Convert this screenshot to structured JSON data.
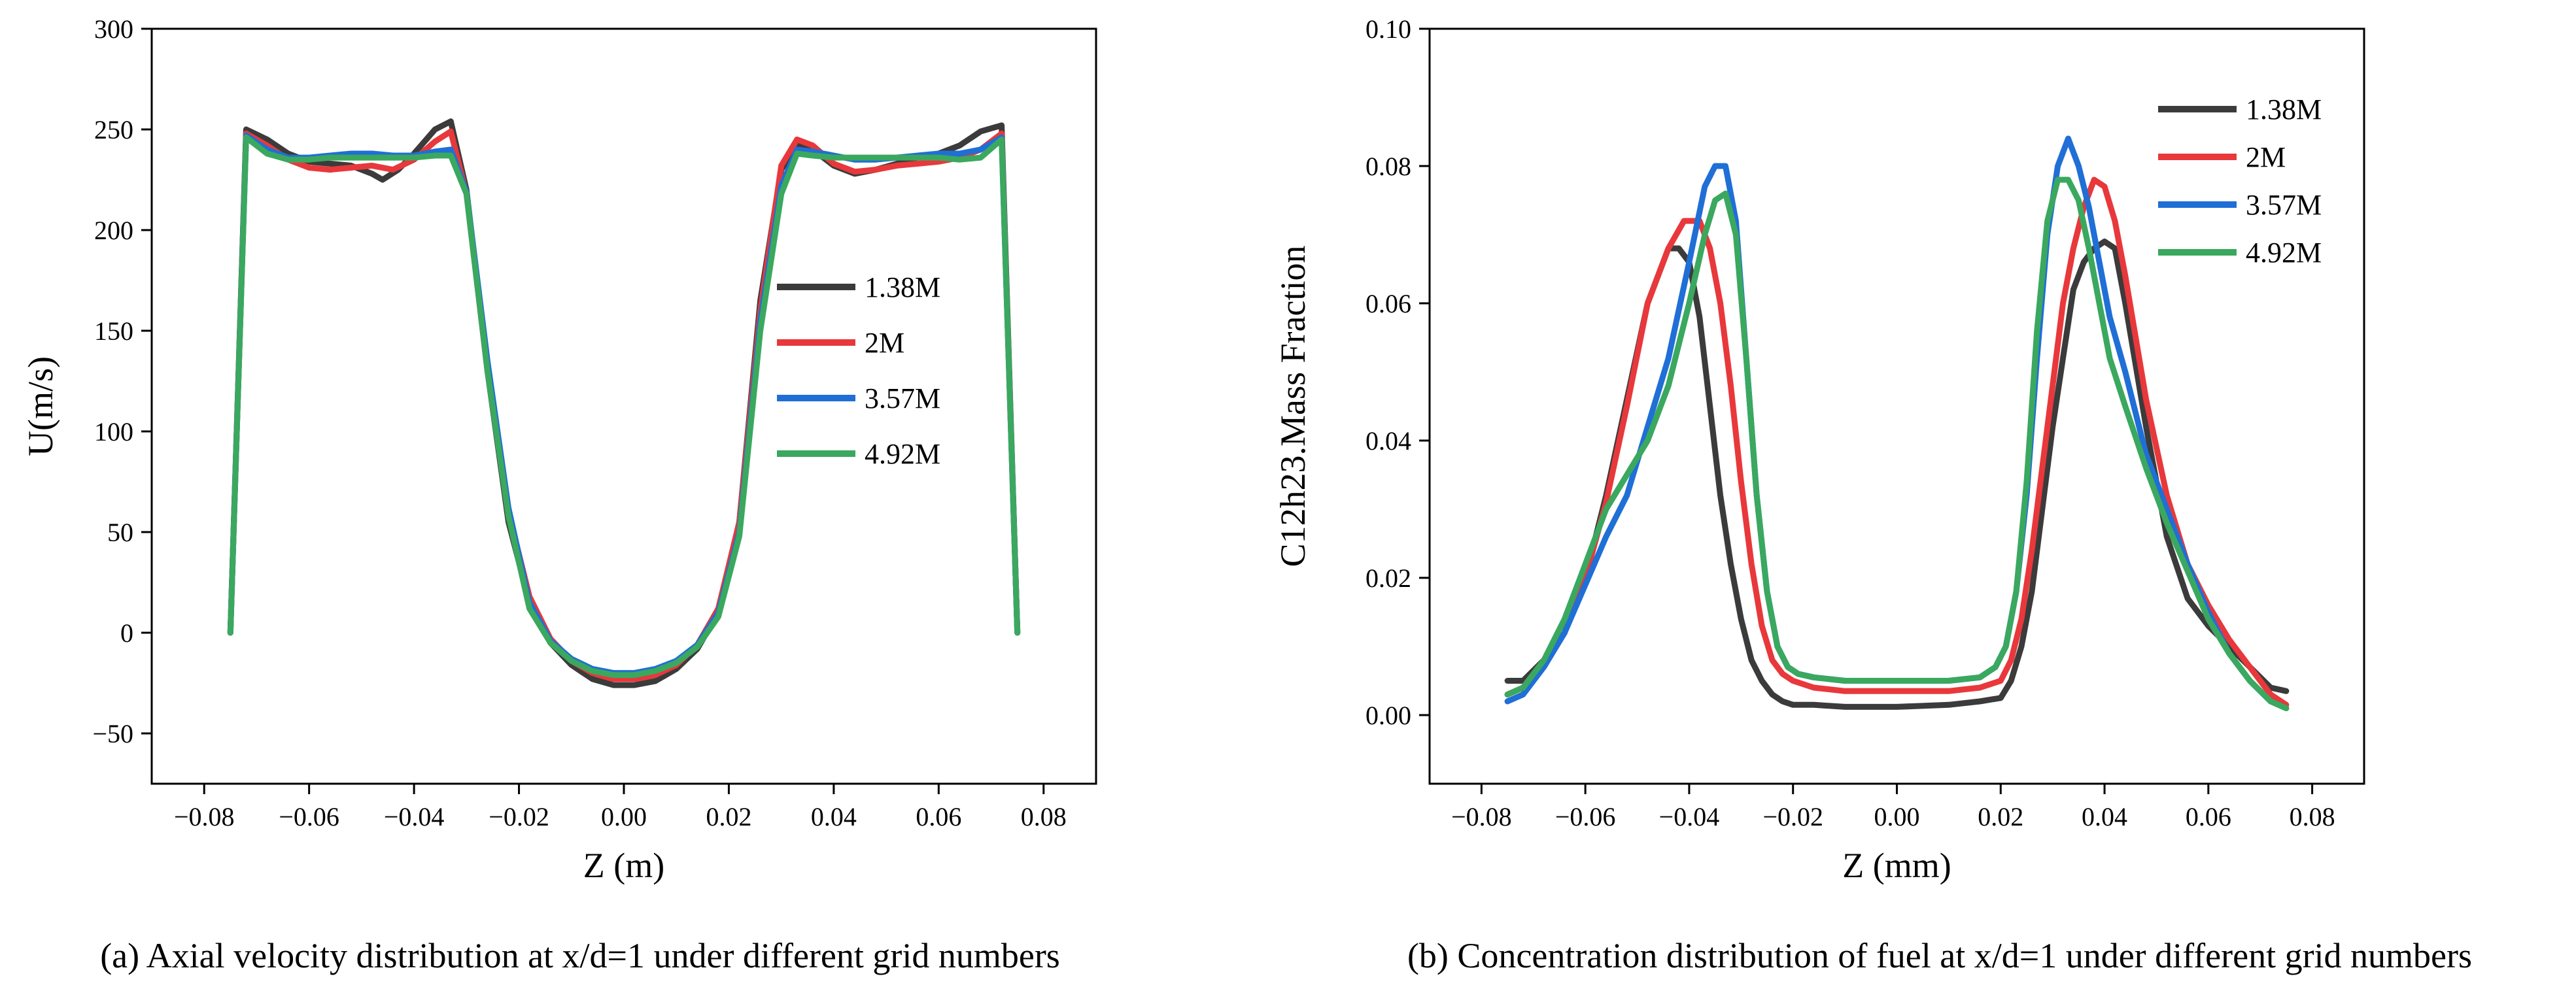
{
  "colors": {
    "1.38M": "#3b3b3b",
    "2M": "#e8383b",
    "3.57M": "#1f6fd6",
    "4.92M": "#3aa85f"
  },
  "chart_data": [
    {
      "type": "line",
      "caption": "(a) Axial velocity distribution at x/d=1 under different grid numbers",
      "xlabel": "Z (m)",
      "ylabel": "U(m/s)",
      "xlim": [
        -0.09,
        0.09
      ],
      "ylim": [
        -75,
        300
      ],
      "xticks": [
        -0.08,
        -0.06,
        -0.04,
        -0.02,
        0.0,
        0.02,
        0.04,
        0.06,
        0.08
      ],
      "xtick_labels": [
        "−0.08",
        "−0.06",
        "−0.04",
        "−0.02",
        "0.00",
        "0.02",
        "0.04",
        "0.06",
        "0.08"
      ],
      "yticks": [
        -50,
        0,
        50,
        100,
        150,
        200,
        250,
        300
      ],
      "ytick_labels": [
        "−50",
        "0",
        "50",
        "100",
        "150",
        "200",
        "250",
        "300"
      ],
      "legend_position": "right",
      "series": [
        {
          "name": "1.38M",
          "x": [
            -0.075,
            -0.072,
            -0.068,
            -0.064,
            -0.06,
            -0.056,
            -0.052,
            -0.048,
            -0.046,
            -0.043,
            -0.04,
            -0.036,
            -0.033,
            -0.03,
            -0.026,
            -0.022,
            -0.018,
            -0.014,
            -0.01,
            -0.006,
            -0.002,
            0.002,
            0.006,
            0.01,
            0.014,
            0.018,
            0.022,
            0.026,
            0.03,
            0.033,
            0.036,
            0.04,
            0.044,
            0.048,
            0.052,
            0.056,
            0.06,
            0.064,
            0.068,
            0.072,
            0.075
          ],
          "y": [
            0,
            250,
            245,
            238,
            234,
            233,
            232,
            228,
            225,
            230,
            238,
            250,
            254,
            220,
            130,
            55,
            15,
            -5,
            -16,
            -23,
            -26,
            -26,
            -24,
            -18,
            -8,
            10,
            55,
            165,
            230,
            242,
            240,
            232,
            228,
            230,
            233,
            236,
            238,
            242,
            249,
            252,
            0
          ]
        },
        {
          "name": "2M",
          "x": [
            -0.075,
            -0.072,
            -0.068,
            -0.064,
            -0.06,
            -0.056,
            -0.052,
            -0.048,
            -0.044,
            -0.04,
            -0.036,
            -0.033,
            -0.03,
            -0.026,
            -0.022,
            -0.018,
            -0.014,
            -0.01,
            -0.006,
            -0.002,
            0.002,
            0.006,
            0.01,
            0.014,
            0.018,
            0.022,
            0.026,
            0.03,
            0.033,
            0.036,
            0.04,
            0.044,
            0.048,
            0.052,
            0.056,
            0.06,
            0.064,
            0.068,
            0.072,
            0.075
          ],
          "y": [
            0,
            248,
            242,
            235,
            231,
            230,
            231,
            232,
            230,
            235,
            244,
            249,
            218,
            130,
            60,
            18,
            -3,
            -14,
            -20,
            -23,
            -23,
            -21,
            -16,
            -6,
            12,
            55,
            160,
            232,
            245,
            242,
            233,
            229,
            230,
            232,
            233,
            234,
            236,
            240,
            248,
            0
          ]
        },
        {
          "name": "3.57M",
          "x": [
            -0.075,
            -0.072,
            -0.068,
            -0.064,
            -0.06,
            -0.056,
            -0.052,
            -0.048,
            -0.044,
            -0.04,
            -0.036,
            -0.033,
            -0.03,
            -0.026,
            -0.022,
            -0.018,
            -0.014,
            -0.01,
            -0.006,
            -0.002,
            0.002,
            0.006,
            0.01,
            0.014,
            0.018,
            0.022,
            0.026,
            0.03,
            0.033,
            0.036,
            0.04,
            0.044,
            0.048,
            0.052,
            0.056,
            0.06,
            0.064,
            0.068,
            0.072,
            0.075
          ],
          "y": [
            0,
            247,
            240,
            236,
            236,
            237,
            238,
            238,
            237,
            237,
            239,
            240,
            219,
            135,
            62,
            15,
            -4,
            -13,
            -18,
            -20,
            -20,
            -18,
            -14,
            -6,
            10,
            50,
            155,
            222,
            240,
            239,
            237,
            235,
            235,
            236,
            237,
            238,
            238,
            240,
            246,
            0
          ]
        },
        {
          "name": "4.92M",
          "x": [
            -0.075,
            -0.072,
            -0.068,
            -0.064,
            -0.06,
            -0.056,
            -0.052,
            -0.048,
            -0.044,
            -0.04,
            -0.036,
            -0.033,
            -0.03,
            -0.026,
            -0.022,
            -0.018,
            -0.014,
            -0.01,
            -0.006,
            -0.002,
            0.002,
            0.006,
            0.01,
            0.014,
            0.018,
            0.022,
            0.026,
            0.03,
            0.033,
            0.036,
            0.04,
            0.044,
            0.048,
            0.052,
            0.056,
            0.06,
            0.064,
            0.068,
            0.072,
            0.075
          ],
          "y": [
            0,
            246,
            238,
            235,
            235,
            236,
            236,
            236,
            236,
            236,
            237,
            237,
            218,
            130,
            58,
            12,
            -5,
            -14,
            -19,
            -21,
            -21,
            -19,
            -15,
            -7,
            8,
            48,
            150,
            218,
            238,
            237,
            236,
            236,
            236,
            236,
            236,
            236,
            235,
            236,
            245,
            0
          ]
        }
      ]
    },
    {
      "type": "line",
      "caption": "(b) Concentration distribution of fuel at x/d=1 under different grid numbers",
      "xlabel": "Z (mm)",
      "ylabel": "C12h23.Mass Fraction",
      "xlim": [
        -0.09,
        0.09
      ],
      "ylim": [
        -0.01,
        0.1
      ],
      "xticks": [
        -0.08,
        -0.06,
        -0.04,
        -0.02,
        0.0,
        0.02,
        0.04,
        0.06,
        0.08
      ],
      "xtick_labels": [
        "−0.08",
        "−0.06",
        "−0.04",
        "−0.02",
        "0.00",
        "0.02",
        "0.04",
        "0.06",
        "0.08"
      ],
      "yticks": [
        0.0,
        0.02,
        0.04,
        0.06,
        0.08,
        0.1
      ],
      "ytick_labels": [
        "0.00",
        "0.02",
        "0.04",
        "0.06",
        "0.08",
        "0.10"
      ],
      "legend_position": "top-right",
      "series": [
        {
          "name": "1.38M",
          "x": [
            -0.075,
            -0.072,
            -0.068,
            -0.064,
            -0.06,
            -0.056,
            -0.052,
            -0.048,
            -0.044,
            -0.042,
            -0.04,
            -0.038,
            -0.036,
            -0.034,
            -0.032,
            -0.03,
            -0.028,
            -0.026,
            -0.024,
            -0.022,
            -0.02,
            -0.016,
            -0.01,
            0.0,
            0.01,
            0.016,
            0.02,
            0.022,
            0.024,
            0.026,
            0.028,
            0.03,
            0.032,
            0.034,
            0.036,
            0.038,
            0.04,
            0.042,
            0.044,
            0.048,
            0.052,
            0.056,
            0.06,
            0.064,
            0.068,
            0.072,
            0.075
          ],
          "y": [
            0.005,
            0.005,
            0.008,
            0.012,
            0.02,
            0.032,
            0.046,
            0.06,
            0.068,
            0.068,
            0.066,
            0.058,
            0.045,
            0.032,
            0.022,
            0.014,
            0.008,
            0.005,
            0.003,
            0.002,
            0.0015,
            0.0015,
            0.0012,
            0.0012,
            0.0015,
            0.002,
            0.0025,
            0.005,
            0.01,
            0.018,
            0.03,
            0.042,
            0.052,
            0.062,
            0.066,
            0.068,
            0.069,
            0.068,
            0.06,
            0.042,
            0.026,
            0.017,
            0.013,
            0.01,
            0.007,
            0.004,
            0.0035
          ]
        },
        {
          "name": "2M",
          "x": [
            -0.075,
            -0.072,
            -0.068,
            -0.064,
            -0.06,
            -0.056,
            -0.052,
            -0.048,
            -0.044,
            -0.041,
            -0.038,
            -0.036,
            -0.034,
            -0.032,
            -0.03,
            -0.028,
            -0.026,
            -0.024,
            -0.022,
            -0.02,
            -0.016,
            -0.01,
            0.0,
            0.01,
            0.016,
            0.02,
            0.022,
            0.024,
            0.026,
            0.028,
            0.03,
            0.032,
            0.034,
            0.036,
            0.038,
            0.04,
            0.042,
            0.044,
            0.048,
            0.052,
            0.056,
            0.06,
            0.064,
            0.068,
            0.072,
            0.075
          ],
          "y": [
            0.003,
            0.004,
            0.007,
            0.012,
            0.02,
            0.031,
            0.045,
            0.06,
            0.068,
            0.072,
            0.072,
            0.068,
            0.06,
            0.048,
            0.034,
            0.022,
            0.013,
            0.008,
            0.006,
            0.005,
            0.004,
            0.0035,
            0.0035,
            0.0035,
            0.004,
            0.005,
            0.008,
            0.014,
            0.024,
            0.036,
            0.048,
            0.06,
            0.068,
            0.074,
            0.078,
            0.077,
            0.072,
            0.064,
            0.046,
            0.032,
            0.022,
            0.016,
            0.011,
            0.007,
            0.003,
            0.0015
          ]
        },
        {
          "name": "3.57M",
          "x": [
            -0.075,
            -0.072,
            -0.068,
            -0.064,
            -0.06,
            -0.056,
            -0.052,
            -0.048,
            -0.044,
            -0.04,
            -0.037,
            -0.035,
            -0.033,
            -0.031,
            -0.029,
            -0.027,
            -0.025,
            -0.023,
            -0.021,
            -0.019,
            -0.016,
            -0.01,
            0.0,
            0.01,
            0.016,
            0.019,
            0.021,
            0.023,
            0.025,
            0.027,
            0.029,
            0.031,
            0.033,
            0.035,
            0.037,
            0.039,
            0.041,
            0.044,
            0.048,
            0.052,
            0.056,
            0.06,
            0.064,
            0.068,
            0.072,
            0.075
          ],
          "y": [
            0.002,
            0.003,
            0.007,
            0.012,
            0.019,
            0.026,
            0.032,
            0.042,
            0.052,
            0.066,
            0.077,
            0.08,
            0.08,
            0.072,
            0.052,
            0.032,
            0.018,
            0.01,
            0.007,
            0.006,
            0.0055,
            0.005,
            0.005,
            0.005,
            0.0055,
            0.007,
            0.01,
            0.018,
            0.032,
            0.052,
            0.07,
            0.08,
            0.084,
            0.08,
            0.074,
            0.066,
            0.058,
            0.05,
            0.038,
            0.03,
            0.022,
            0.015,
            0.009,
            0.005,
            0.002,
            0.001
          ]
        },
        {
          "name": "4.92M",
          "x": [
            -0.075,
            -0.072,
            -0.068,
            -0.064,
            -0.06,
            -0.056,
            -0.052,
            -0.048,
            -0.044,
            -0.04,
            -0.037,
            -0.035,
            -0.033,
            -0.031,
            -0.029,
            -0.027,
            -0.025,
            -0.023,
            -0.021,
            -0.019,
            -0.016,
            -0.01,
            0.0,
            0.01,
            0.016,
            0.019,
            0.021,
            0.023,
            0.025,
            0.027,
            0.029,
            0.031,
            0.033,
            0.035,
            0.037,
            0.039,
            0.041,
            0.044,
            0.048,
            0.052,
            0.056,
            0.06,
            0.064,
            0.068,
            0.072,
            0.075
          ],
          "y": [
            0.003,
            0.004,
            0.008,
            0.014,
            0.022,
            0.03,
            0.035,
            0.04,
            0.048,
            0.06,
            0.07,
            0.075,
            0.076,
            0.07,
            0.052,
            0.032,
            0.018,
            0.01,
            0.007,
            0.006,
            0.0055,
            0.005,
            0.005,
            0.005,
            0.0055,
            0.007,
            0.01,
            0.018,
            0.034,
            0.056,
            0.072,
            0.078,
            0.078,
            0.075,
            0.068,
            0.06,
            0.052,
            0.045,
            0.036,
            0.028,
            0.021,
            0.014,
            0.009,
            0.005,
            0.002,
            0.001
          ]
        }
      ]
    }
  ]
}
